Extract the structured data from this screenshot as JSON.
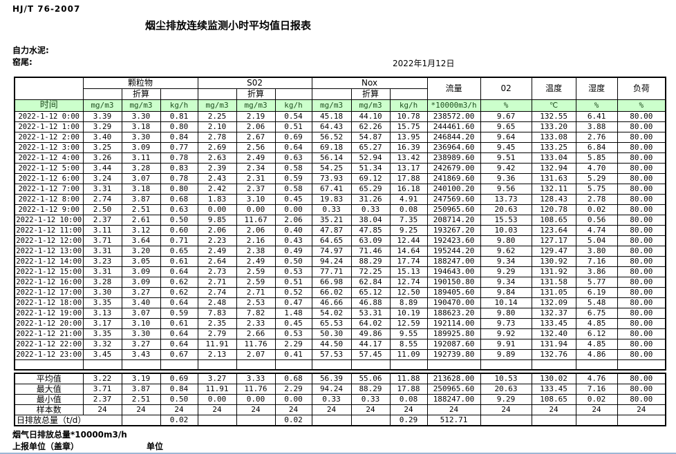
{
  "page": {
    "standard": "HJ/T  76-2007",
    "title": "烟尘排放连续监测小时平均值日报表",
    "company": "自力水泥:",
    "location": "窑尾:",
    "date": "2022年1月12日"
  },
  "table": {
    "groups": [
      {
        "label": "颗粒物"
      },
      {
        "label": "S02"
      },
      {
        "label": "Nox"
      }
    ],
    "converted_label": "折算",
    "single_cols": [
      "流量",
      "02",
      "温度",
      "湿度",
      "负荷"
    ],
    "units_row": [
      "时间",
      "mg/m3",
      "mg/m3",
      "kg/h",
      "mg/m3",
      "mg/m3",
      "kg/h",
      "mg/m3",
      "mg/m3",
      "kg/h",
      "*10000m3/h",
      "%",
      "℃",
      "%",
      "%"
    ],
    "rows": [
      [
        "2022-1-12 0:00",
        "3.39",
        "3.30",
        "0.81",
        "2.25",
        "2.19",
        "0.54",
        "45.18",
        "44.10",
        "10.78",
        "238572.00",
        "9.67",
        "132.55",
        "6.41",
        "80.00"
      ],
      [
        "2022-1-12 1:00",
        "3.29",
        "3.18",
        "0.80",
        "2.10",
        "2.06",
        "0.51",
        "64.43",
        "62.26",
        "15.75",
        "244461.60",
        "9.65",
        "133.20",
        "3.88",
        "80.00"
      ],
      [
        "2022-1-12 2:00",
        "3.40",
        "3.30",
        "0.84",
        "2.78",
        "2.67",
        "0.69",
        "56.52",
        "54.87",
        "13.95",
        "246844.20",
        "9.64",
        "133.08",
        "2.76",
        "80.00"
      ],
      [
        "2022-1-12 3:00",
        "3.25",
        "3.09",
        "0.77",
        "2.69",
        "2.56",
        "0.64",
        "69.18",
        "65.27",
        "16.39",
        "236964.60",
        "9.45",
        "133.25",
        "6.84",
        "80.00"
      ],
      [
        "2022-1-12 4:00",
        "3.26",
        "3.11",
        "0.78",
        "2.63",
        "2.49",
        "0.63",
        "56.14",
        "52.94",
        "13.42",
        "238989.60",
        "9.51",
        "133.04",
        "5.85",
        "80.00"
      ],
      [
        "2022-1-12 5:00",
        "3.44",
        "3.28",
        "0.83",
        "2.39",
        "2.34",
        "0.58",
        "54.25",
        "51.34",
        "13.17",
        "242679.00",
        "9.42",
        "132.94",
        "4.70",
        "80.00"
      ],
      [
        "2022-1-12 6:00",
        "3.24",
        "3.07",
        "0.78",
        "2.43",
        "2.31",
        "0.59",
        "73.93",
        "69.12",
        "17.88",
        "241869.60",
        "9.36",
        "131.63",
        "5.29",
        "80.00"
      ],
      [
        "2022-1-12 7:00",
        "3.31",
        "3.18",
        "0.80",
        "2.42",
        "2.37",
        "0.58",
        "67.41",
        "65.29",
        "16.18",
        "240100.20",
        "9.56",
        "132.11",
        "5.75",
        "80.00"
      ],
      [
        "2022-1-12 8:00",
        "2.74",
        "3.87",
        "0.68",
        "1.83",
        "3.10",
        "0.45",
        "19.83",
        "31.26",
        "4.91",
        "247569.60",
        "13.73",
        "128.43",
        "2.78",
        "80.00"
      ],
      [
        "2022-1-12 9:00",
        "2.50",
        "2.51",
        "0.63",
        "0.00",
        "0.00",
        "0.00",
        "0.33",
        "0.33",
        "0.08",
        "250965.60",
        "20.63",
        "120.78",
        "0.02",
        "80.00"
      ],
      [
        "2022-1-12 10:00",
        "2.37",
        "2.61",
        "0.50",
        "9.85",
        "11.67",
        "2.06",
        "35.21",
        "38.04",
        "7.35",
        "208714.20",
        "15.53",
        "108.65",
        "0.56",
        "80.00"
      ],
      [
        "2022-1-12 11:00",
        "3.11",
        "3.12",
        "0.60",
        "2.06",
        "2.06",
        "0.40",
        "47.87",
        "47.85",
        "9.25",
        "193267.20",
        "10.03",
        "123.64",
        "4.74",
        "80.00"
      ],
      [
        "2022-1-12 12:00",
        "3.71",
        "3.64",
        "0.71",
        "2.23",
        "2.16",
        "0.43",
        "64.65",
        "63.09",
        "12.44",
        "192423.60",
        "9.80",
        "127.17",
        "5.04",
        "80.00"
      ],
      [
        "2022-1-12 13:00",
        "3.31",
        "3.20",
        "0.65",
        "2.49",
        "2.38",
        "0.49",
        "74.97",
        "71.46",
        "14.64",
        "195244.20",
        "9.62",
        "129.47",
        "3.80",
        "80.00"
      ],
      [
        "2022-1-12 14:00",
        "3.23",
        "3.05",
        "0.61",
        "2.64",
        "2.49",
        "0.50",
        "94.24",
        "88.29",
        "17.74",
        "188247.00",
        "9.34",
        "130.92",
        "7.16",
        "80.00"
      ],
      [
        "2022-1-12 15:00",
        "3.31",
        "3.09",
        "0.64",
        "2.73",
        "2.59",
        "0.53",
        "77.71",
        "72.25",
        "15.13",
        "194643.00",
        "9.29",
        "131.92",
        "3.86",
        "80.00"
      ],
      [
        "2022-1-12 16:00",
        "3.28",
        "3.09",
        "0.62",
        "2.71",
        "2.59",
        "0.51",
        "66.98",
        "62.84",
        "12.74",
        "190150.80",
        "9.34",
        "131.58",
        "5.77",
        "80.00"
      ],
      [
        "2022-1-12 17:00",
        "3.30",
        "3.27",
        "0.62",
        "2.74",
        "2.71",
        "0.52",
        "66.02",
        "65.12",
        "12.50",
        "189405.60",
        "9.84",
        "131.05",
        "6.19",
        "80.00"
      ],
      [
        "2022-1-12 18:00",
        "3.35",
        "3.40",
        "0.64",
        "2.48",
        "2.53",
        "0.47",
        "46.66",
        "46.88",
        "8.89",
        "190470.00",
        "10.14",
        "132.09",
        "5.48",
        "80.00"
      ],
      [
        "2022-1-12 19:00",
        "3.13",
        "3.07",
        "0.59",
        "7.83",
        "7.82",
        "1.48",
        "54.02",
        "53.31",
        "10.19",
        "188623.20",
        "9.80",
        "132.37",
        "6.75",
        "80.00"
      ],
      [
        "2022-1-12 20:00",
        "3.17",
        "3.10",
        "0.61",
        "2.35",
        "2.33",
        "0.45",
        "65.53",
        "64.02",
        "12.59",
        "192114.00",
        "9.73",
        "133.45",
        "4.85",
        "80.00"
      ],
      [
        "2022-1-12 21:00",
        "3.35",
        "3.30",
        "0.64",
        "2.79",
        "2.66",
        "0.53",
        "50.30",
        "49.86",
        "9.55",
        "189925.80",
        "9.92",
        "132.40",
        "6.12",
        "80.00"
      ],
      [
        "2022-1-12 22:00",
        "3.32",
        "3.27",
        "0.64",
        "11.91",
        "11.76",
        "2.29",
        "44.50",
        "44.17",
        "8.55",
        "192087.60",
        "9.91",
        "131.94",
        "4.85",
        "80.00"
      ],
      [
        "2022-1-12 23:00",
        "3.45",
        "3.43",
        "0.67",
        "2.13",
        "2.07",
        "0.41",
        "57.53",
        "57.45",
        "11.09",
        "192739.80",
        "9.89",
        "132.76",
        "4.86",
        "80.00"
      ]
    ],
    "summary": [
      {
        "label": "平均值",
        "values": [
          "3.22",
          "3.19",
          "0.69",
          "3.27",
          "3.33",
          "0.68",
          "56.39",
          "55.06",
          "11.88",
          "213628.00",
          "10.53",
          "130.02",
          "4.76",
          "80.00"
        ]
      },
      {
        "label": "最大值",
        "values": [
          "3.71",
          "3.87",
          "0.84",
          "11.91",
          "11.76",
          "2.29",
          "94.24",
          "88.29",
          "17.88",
          "250965.60",
          "20.63",
          "133.45",
          "7.16",
          "80.00"
        ]
      },
      {
        "label": "最小值",
        "values": [
          "2.37",
          "2.51",
          "0.50",
          "0.00",
          "0.00",
          "0.00",
          "0.33",
          "0.33",
          "0.08",
          "188247.00",
          "9.29",
          "108.65",
          "0.02",
          "80.00"
        ]
      },
      {
        "label": "样本数",
        "values": [
          "24",
          "24",
          "24",
          "24",
          "24",
          "24",
          "24",
          "24",
          "24",
          "24",
          "24",
          "24",
          "24",
          "24"
        ]
      }
    ],
    "daily_total": {
      "label": "日排放总量（t/d）",
      "values": [
        "",
        "0.02",
        "",
        "",
        "0.02",
        "",
        "",
        "0.29",
        "512.71",
        "",
        "",
        "",
        ""
      ]
    }
  },
  "footer": {
    "flue_total": "烟气日排放总量*10000m3/h",
    "report_unit": "上报单位（盖章）",
    "unit": "单位"
  },
  "colors": {
    "header_green": "#ccffcc",
    "header_text": "#1e4d1e",
    "border": "#000000",
    "window_edge": "#9cb6d4"
  }
}
